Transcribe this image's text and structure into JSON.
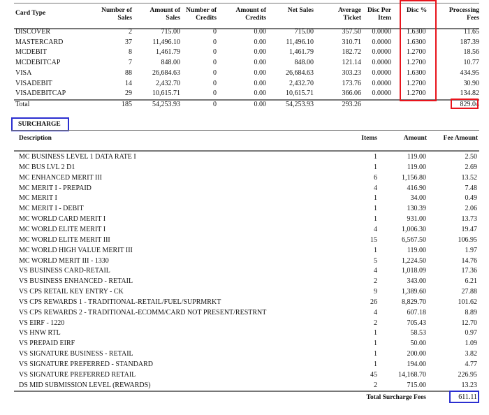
{
  "summary": {
    "headers": [
      "Card Type",
      "Number of Sales",
      "Amount of Sales",
      "Number of Credits",
      "Amount of Credits",
      "Net Sales",
      "Average Ticket",
      "Disc Per Item",
      "Disc %",
      "Processing Fees"
    ],
    "rows": [
      [
        "DISCOVER",
        "2",
        "715.00",
        "0",
        "0.00",
        "715.00",
        "357.50",
        "0.0000",
        "1.6300",
        "11.65"
      ],
      [
        "MASTERCARD",
        "37",
        "11,496.10",
        "0",
        "0.00",
        "11,496.10",
        "310.71",
        "0.0000",
        "1.6300",
        "187.39"
      ],
      [
        "MCDEBIT",
        "8",
        "1,461.79",
        "0",
        "0.00",
        "1,461.79",
        "182.72",
        "0.0000",
        "1.2700",
        "18.56"
      ],
      [
        "MCDEBITCAP",
        "7",
        "848.00",
        "0",
        "0.00",
        "848.00",
        "121.14",
        "0.0000",
        "1.2700",
        "10.77"
      ],
      [
        "VISA",
        "88",
        "26,684.63",
        "0",
        "0.00",
        "26,684.63",
        "303.23",
        "0.0000",
        "1.6300",
        "434.95"
      ],
      [
        "VISADEBIT",
        "14",
        "2,432.70",
        "0",
        "0.00",
        "2,432.70",
        "173.76",
        "0.0000",
        "1.2700",
        "30.90"
      ],
      [
        "VISADEBITCAP",
        "29",
        "10,615.71",
        "0",
        "0.00",
        "10,615.71",
        "366.06",
        "0.0000",
        "1.2700",
        "134.82"
      ]
    ],
    "total": [
      "Total",
      "185",
      "54,253.93",
      "0",
      "0.00",
      "54,253.93",
      "293.26",
      "",
      "",
      "829.04"
    ]
  },
  "surcharge": {
    "title": "SURCHARGE",
    "headers": [
      "Description",
      "Items",
      "Amount",
      "Fee Amount"
    ],
    "rows": [
      [
        "MC BUSINESS LEVEL 1 DATA RATE I",
        "1",
        "119.00",
        "2.50"
      ],
      [
        "MC BUS LVL 2 D1",
        "1",
        "119.00",
        "2.69"
      ],
      [
        "MC ENHANCED MERIT III",
        "6",
        "1,156.80",
        "13.52"
      ],
      [
        "MC MERIT I - PREPAID",
        "4",
        "416.90",
        "7.48"
      ],
      [
        "MC MERIT I",
        "1",
        "34.00",
        "0.49"
      ],
      [
        "MC MERIT I - DEBIT",
        "1",
        "130.39",
        "2.06"
      ],
      [
        "MC WORLD CARD MERIT I",
        "1",
        "931.00",
        "13.73"
      ],
      [
        "MC WORLD ELITE MERIT I",
        "4",
        "1,006.30",
        "19.47"
      ],
      [
        "MC WORLD ELITE MERIT III",
        "15",
        "6,567.50",
        "106.95"
      ],
      [
        "MC WORLD HIGH VALUE MERIT III",
        "1",
        "119.00",
        "1.97"
      ],
      [
        "MC WORLD MERIT III - 1330",
        "5",
        "1,224.50",
        "14.76"
      ],
      [
        "VS BUSINESS CARD-RETAIL",
        "4",
        "1,018.09",
        "17.36"
      ],
      [
        "VS BUSINESS ENHANCED - RETAIL",
        "2",
        "343.00",
        "6.21"
      ],
      [
        "VS CPS RETAIL KEY ENTRY - CK",
        "9",
        "1,389.60",
        "27.88"
      ],
      [
        "VS CPS REWARDS 1 - TRADITIONAL-RETAIL/FUEL/SUPRMRKT",
        "26",
        "8,829.70",
        "101.62"
      ],
      [
        "VS CPS REWARDS 2 - TRADITIONAL-ECOMM/CARD NOT PRESENT/RESTRNT",
        "4",
        "607.18",
        "8.89"
      ],
      [
        "VS EIRF - 1220",
        "2",
        "705.43",
        "12.70"
      ],
      [
        "VS HNW RTL",
        "1",
        "58.53",
        "0.97"
      ],
      [
        "VS PREPAID EIRF",
        "1",
        "50.00",
        "1.09"
      ],
      [
        "VS SIGNATURE BUSINESS - RETAIL",
        "1",
        "200.00",
        "3.82"
      ],
      [
        "VS SIGNATURE PREFERRED - STANDARD",
        "1",
        "194.00",
        "4.77"
      ],
      [
        "VS SIGNATURE PREFERRED RETAIL",
        "45",
        "14,168.70",
        "226.95"
      ],
      [
        "DS MID SUBMISSION LEVEL (REWARDS)",
        "2",
        "715.00",
        "13.23"
      ]
    ],
    "total_label": "Total Surcharge Fees",
    "total_value": "611.11"
  },
  "highlight_colors": {
    "red": "#e8141c",
    "blue": "#2b2fd0"
  }
}
